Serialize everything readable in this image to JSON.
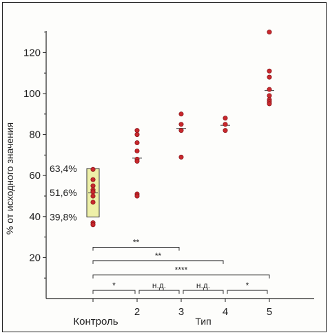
{
  "chart_data": {
    "type": "scatter",
    "title": "",
    "ylabel": "% от исходного значения",
    "xlabel": "Тип",
    "ylim": [
      0,
      130
    ],
    "yticks": [
      20,
      40,
      60,
      80,
      100,
      120
    ],
    "categories": [
      "Контроль",
      "2",
      "3",
      "4",
      "5"
    ],
    "series": [
      {
        "values": [
          [
            1,
            63
          ],
          [
            1,
            58
          ],
          [
            1,
            55
          ],
          [
            1,
            53
          ],
          [
            1,
            52
          ],
          [
            1,
            50
          ],
          [
            1,
            47
          ],
          [
            1,
            37
          ],
          [
            1,
            36
          ],
          [
            2,
            82
          ],
          [
            2,
            80
          ],
          [
            2,
            76
          ],
          [
            2,
            72
          ],
          [
            2,
            68
          ],
          [
            2,
            67
          ],
          [
            2,
            51
          ],
          [
            2,
            50
          ],
          [
            3,
            90
          ],
          [
            3,
            85
          ],
          [
            3,
            82
          ],
          [
            3,
            69
          ],
          [
            4,
            88
          ],
          [
            4,
            85
          ],
          [
            4,
            82
          ],
          [
            5,
            130
          ],
          [
            5,
            111
          ],
          [
            5,
            108
          ],
          [
            5,
            102
          ],
          [
            5,
            99
          ],
          [
            5,
            97
          ],
          [
            5,
            96
          ],
          [
            5,
            95
          ]
        ]
      }
    ],
    "medians": [
      {
        "x": 1,
        "y": 51.6
      },
      {
        "x": 2,
        "y": 68.5
      },
      {
        "x": 3,
        "y": 83
      },
      {
        "x": 4,
        "y": 84.5
      },
      {
        "x": 5,
        "y": 101.5
      }
    ],
    "control_box": {
      "x": 1,
      "ymin": 39.8,
      "ymax": 63.4
    },
    "annotations": [
      {
        "text": "63,4%",
        "y": 63.4
      },
      {
        "text": "51,6%",
        "y": 51.6
      },
      {
        "text": "39,8%",
        "y": 39.8
      }
    ],
    "significance": [
      {
        "from": 1,
        "to": 3,
        "y": 25,
        "label": "**"
      },
      {
        "from": 1,
        "to": 4,
        "y": 18.5,
        "label": "**"
      },
      {
        "from": 1,
        "to": 5,
        "y": 11.5,
        "label": "****"
      },
      {
        "from": 1,
        "to": 2,
        "y": 4,
        "label": "*"
      },
      {
        "from": 2,
        "to": 3,
        "y": 4,
        "label": "н.д."
      },
      {
        "from": 3,
        "to": 4,
        "y": 4,
        "label": "н.д."
      },
      {
        "from": 4,
        "to": 5,
        "y": 4,
        "label": "*"
      }
    ],
    "grid": false,
    "colors": {
      "point": "#c8282d",
      "box": "#eef0a8",
      "median": "#555555"
    }
  }
}
